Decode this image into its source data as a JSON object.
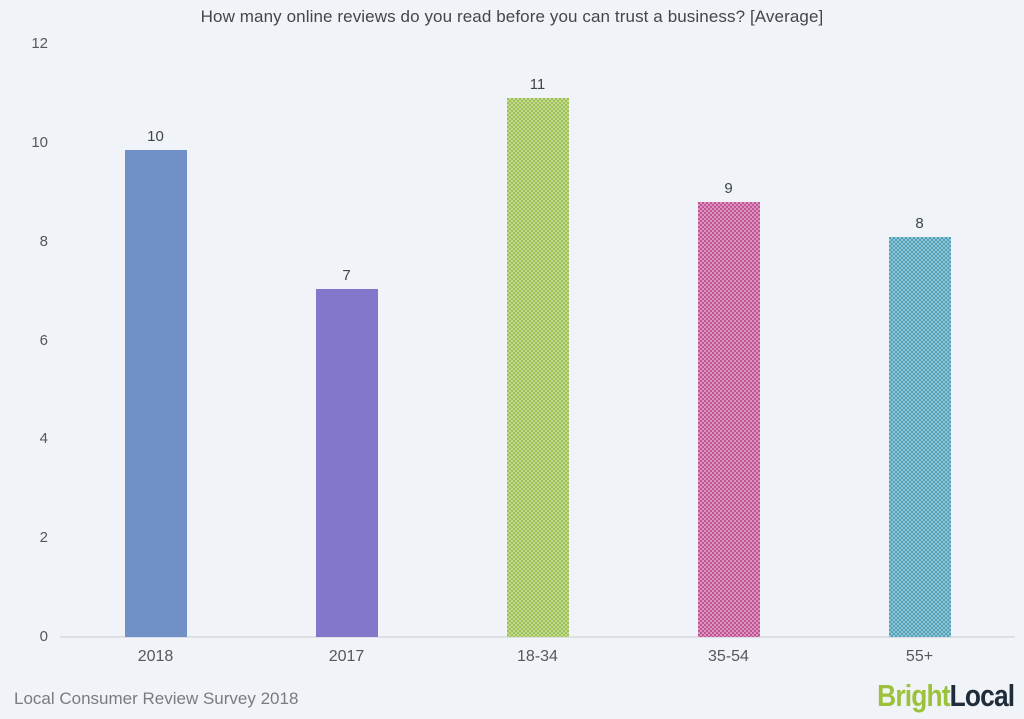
{
  "title": "How many online reviews do you read before you can trust a business? [Average]",
  "source_caption": "Local Consumer Review Survey 2018",
  "logo": {
    "bright": "Bright",
    "local": "Local",
    "bright_color": "#9cc23c",
    "local_color": "#1f2c3a"
  },
  "colors": {
    "background": "#f0f3f7",
    "axis_line": "#dcdfe4",
    "title_text": "#43474b",
    "tick_text": "#54585d",
    "value_label_text": "#3f4449",
    "category_text": "#54585d",
    "source_text": "#787c81"
  },
  "chart_data": {
    "type": "bar",
    "title": "How many online reviews do you read before you can trust a business? [Average]",
    "categories": [
      "2018",
      "2017",
      "18-34",
      "35-54",
      "55+"
    ],
    "values": [
      10,
      7,
      11,
      9,
      8
    ],
    "value_labels": [
      "10",
      "7",
      "11",
      "9",
      "8"
    ],
    "bar_heights_precise": [
      9.85,
      7.05,
      10.9,
      8.8,
      8.1
    ],
    "bar_colors": [
      "#7190c8",
      "#8377cb",
      "#9dc253",
      "#c25495",
      "#4fa1ba"
    ],
    "bar_patterns": [
      "solid",
      "solid",
      "crosshatch",
      "crosshatch",
      "crosshatch"
    ],
    "xlabel": "",
    "ylabel": "",
    "ylim": [
      0,
      12
    ],
    "yticks": [
      0,
      2,
      4,
      6,
      8,
      10,
      12
    ],
    "grid": false,
    "legend": "none",
    "caption": "Local Consumer Review Survey 2018"
  }
}
